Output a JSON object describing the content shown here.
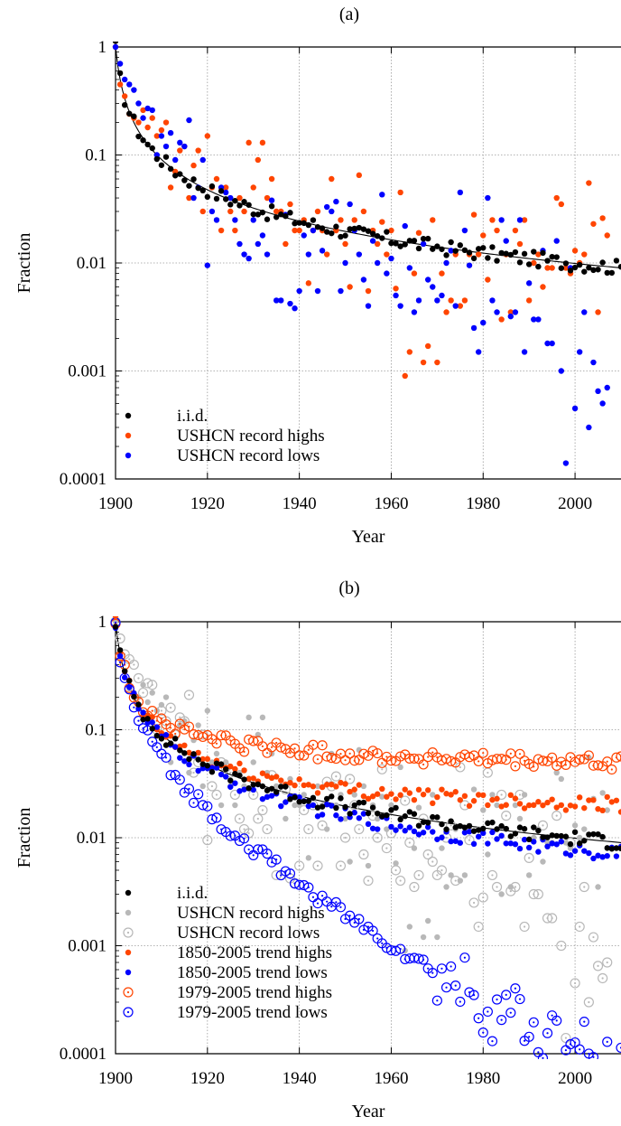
{
  "chart_data": [
    {
      "type": "scatter",
      "title": "(a)",
      "xlabel": "Year",
      "ylabel": "Fraction",
      "yscale": "log",
      "xlim": [
        1900,
        2010
      ],
      "ylim": [
        0.0001,
        1
      ],
      "grid": true,
      "legend_position": "bottom-left",
      "x_ticks": [
        "1900",
        "1920",
        "1940",
        "1960",
        "1980",
        "2000"
      ],
      "y_ticks": [
        "0.0001",
        "0.001",
        "0.01",
        "0.1",
        "1"
      ],
      "iid_curve": "1/(year-1899)",
      "series": [
        {
          "name": "i.i.d.",
          "color": "#000000",
          "marker": "filled",
          "model": "1/(year-1899)"
        },
        {
          "name": "USHCN record highs",
          "color": "#ff4500",
          "marker": "filled",
          "points": [
            [
              1900,
              1.0
            ],
            [
              1901,
              0.45
            ],
            [
              1902,
              0.35
            ],
            [
              1903,
              0.24
            ],
            [
              1904,
              0.22
            ],
            [
              1905,
              0.2
            ],
            [
              1906,
              0.26
            ],
            [
              1907,
              0.18
            ],
            [
              1908,
              0.22
            ],
            [
              1909,
              0.15
            ],
            [
              1910,
              0.17
            ],
            [
              1911,
              0.2
            ],
            [
              1912,
              0.05
            ],
            [
              1913,
              0.07
            ],
            [
              1914,
              0.11
            ],
            [
              1915,
              0.12
            ],
            [
              1916,
              0.04
            ],
            [
              1917,
              0.08
            ],
            [
              1918,
              0.11
            ],
            [
              1919,
              0.03
            ],
            [
              1920,
              0.15
            ],
            [
              1921,
              0.05
            ],
            [
              1922,
              0.06
            ],
            [
              1923,
              0.02
            ],
            [
              1924,
              0.05
            ],
            [
              1925,
              0.03
            ],
            [
              1926,
              0.02
            ],
            [
              1927,
              0.04
            ],
            [
              1928,
              0.03
            ],
            [
              1929,
              0.13
            ],
            [
              1930,
              0.05
            ],
            [
              1931,
              0.09
            ],
            [
              1932,
              0.13
            ],
            [
              1933,
              0.04
            ],
            [
              1934,
              0.06
            ],
            [
              1935,
              0.03
            ],
            [
              1936,
              0.03
            ],
            [
              1937,
              0.015
            ],
            [
              1938,
              0.035
            ],
            [
              1939,
              0.02
            ],
            [
              1940,
              0.02
            ],
            [
              1941,
              0.025
            ],
            [
              1942,
              0.0065
            ],
            [
              1943,
              0.02
            ],
            [
              1944,
              0.03
            ],
            [
              1945,
              0.02
            ],
            [
              1946,
              0.012
            ],
            [
              1947,
              0.06
            ],
            [
              1948,
              0.02
            ],
            [
              1949,
              0.025
            ],
            [
              1950,
              0.015
            ],
            [
              1951,
              0.006
            ],
            [
              1952,
              0.025
            ],
            [
              1953,
              0.065
            ],
            [
              1954,
              0.03
            ],
            [
              1955,
              0.0055
            ],
            [
              1956,
              0.02
            ],
            [
              1957,
              0.015
            ],
            [
              1958,
              0.024
            ],
            [
              1959,
              0.012
            ],
            [
              1960,
              0.02
            ],
            [
              1961,
              0.0058
            ],
            [
              1962,
              0.045
            ],
            [
              1963,
              0.0009
            ],
            [
              1964,
              0.0015
            ],
            [
              1965,
              0.008
            ],
            [
              1966,
              0.019
            ],
            [
              1967,
              0.0012
            ],
            [
              1968,
              0.0017
            ],
            [
              1969,
              0.025
            ],
            [
              1970,
              0.0012
            ],
            [
              1971,
              0.008
            ],
            [
              1972,
              0.0035
            ],
            [
              1973,
              0.0045
            ],
            [
              1974,
              0.012
            ],
            [
              1975,
              0.004
            ],
            [
              1976,
              0.0045
            ],
            [
              1977,
              0.012
            ],
            [
              1978,
              0.028
            ],
            [
              1979,
              0.012
            ],
            [
              1980,
              0.018
            ],
            [
              1981,
              0.007
            ],
            [
              1982,
              0.025
            ],
            [
              1983,
              0.02
            ],
            [
              1984,
              0.003
            ],
            [
              1985,
              0.012
            ],
            [
              1986,
              0.0035
            ],
            [
              1987,
              0.02
            ],
            [
              1988,
              0.015
            ],
            [
              1989,
              0.025
            ],
            [
              1990,
              0.0045
            ],
            [
              1991,
              0.01
            ],
            [
              1992,
              0.012
            ],
            [
              1993,
              0.006
            ],
            [
              1994,
              0.009
            ],
            [
              1995,
              0.009
            ],
            [
              1996,
              0.04
            ],
            [
              1997,
              0.035
            ],
            [
              1998,
              0.009
            ],
            [
              1999,
              0.008
            ],
            [
              2000,
              0.013
            ],
            [
              2001,
              0.01
            ],
            [
              2002,
              0.012
            ],
            [
              2003,
              0.055
            ],
            [
              2004,
              0.023
            ],
            [
              2005,
              0.0035
            ],
            [
              2006,
              0.026
            ],
            [
              2007,
              0.018
            ]
          ]
        },
        {
          "name": "USHCN record lows",
          "color": "#0000ff",
          "marker": "filled",
          "points": [
            [
              1900,
              1.0
            ],
            [
              1901,
              0.7
            ],
            [
              1902,
              0.5
            ],
            [
              1903,
              0.45
            ],
            [
              1904,
              0.4
            ],
            [
              1905,
              0.3
            ],
            [
              1906,
              0.22
            ],
            [
              1907,
              0.27
            ],
            [
              1908,
              0.26
            ],
            [
              1909,
              0.1
            ],
            [
              1910,
              0.15
            ],
            [
              1911,
              0.12
            ],
            [
              1912,
              0.16
            ],
            [
              1913,
              0.09
            ],
            [
              1914,
              0.13
            ],
            [
              1915,
              0.12
            ],
            [
              1916,
              0.21
            ],
            [
              1917,
              0.04
            ],
            [
              1918,
              0.05
            ],
            [
              1919,
              0.09
            ],
            [
              1920,
              0.0095
            ],
            [
              1921,
              0.03
            ],
            [
              1922,
              0.025
            ],
            [
              1923,
              0.05
            ],
            [
              1924,
              0.045
            ],
            [
              1925,
              0.04
            ],
            [
              1926,
              0.025
            ],
            [
              1927,
              0.015
            ],
            [
              1928,
              0.012
            ],
            [
              1929,
              0.011
            ],
            [
              1930,
              0.025
            ],
            [
              1931,
              0.015
            ],
            [
              1932,
              0.018
            ],
            [
              1933,
              0.012
            ],
            [
              1934,
              0.038
            ],
            [
              1935,
              0.0045
            ],
            [
              1936,
              0.0045
            ],
            [
              1937,
              0.028
            ],
            [
              1938,
              0.0042
            ],
            [
              1939,
              0.0038
            ],
            [
              1940,
              0.0055
            ],
            [
              1941,
              0.018
            ],
            [
              1942,
              0.012
            ],
            [
              1943,
              0.02
            ],
            [
              1944,
              0.0055
            ],
            [
              1945,
              0.013
            ],
            [
              1946,
              0.033
            ],
            [
              1947,
              0.03
            ],
            [
              1948,
              0.037
            ],
            [
              1949,
              0.0055
            ],
            [
              1950,
              0.01
            ],
            [
              1951,
              0.035
            ],
            [
              1952,
              0.02
            ],
            [
              1953,
              0.012
            ],
            [
              1954,
              0.007
            ],
            [
              1955,
              0.004
            ],
            [
              1956,
              0.016
            ],
            [
              1957,
              0.01
            ],
            [
              1958,
              0.043
            ],
            [
              1959,
              0.008
            ],
            [
              1960,
              0.011
            ],
            [
              1961,
              0.005
            ],
            [
              1962,
              0.004
            ],
            [
              1963,
              0.022
            ],
            [
              1964,
              0.009
            ],
            [
              1965,
              0.0035
            ],
            [
              1966,
              0.0045
            ],
            [
              1967,
              0.015
            ],
            [
              1968,
              0.007
            ],
            [
              1969,
              0.006
            ],
            [
              1970,
              0.0045
            ],
            [
              1971,
              0.005
            ],
            [
              1972,
              0.01
            ],
            [
              1973,
              0.013
            ],
            [
              1974,
              0.004
            ],
            [
              1975,
              0.045
            ],
            [
              1976,
              0.02
            ],
            [
              1977,
              0.0095
            ],
            [
              1978,
              0.0025
            ],
            [
              1979,
              0.0015
            ],
            [
              1980,
              0.0028
            ],
            [
              1981,
              0.04
            ],
            [
              1982,
              0.0045
            ],
            [
              1983,
              0.0035
            ],
            [
              1984,
              0.025
            ],
            [
              1985,
              0.016
            ],
            [
              1986,
              0.0032
            ],
            [
              1987,
              0.0035
            ],
            [
              1988,
              0.025
            ],
            [
              1989,
              0.0015
            ],
            [
              1990,
              0.0065
            ],
            [
              1991,
              0.003
            ],
            [
              1992,
              0.003
            ],
            [
              1993,
              0.013
            ],
            [
              1994,
              0.0018
            ],
            [
              1995,
              0.0018
            ],
            [
              1996,
              0.016
            ],
            [
              1997,
              0.001
            ],
            [
              1998,
              0.00014
            ],
            [
              1999,
              0.009
            ],
            [
              2000,
              0.00045
            ],
            [
              2001,
              0.0015
            ],
            [
              2002,
              0.0035
            ],
            [
              2003,
              0.0003
            ],
            [
              2004,
              0.0012
            ],
            [
              2005,
              0.00065
            ],
            [
              2006,
              0.0005
            ],
            [
              2007,
              0.0007
            ]
          ]
        }
      ]
    },
    {
      "type": "scatter",
      "title": "(b)",
      "xlabel": "Year",
      "ylabel": "Fraction",
      "yscale": "log",
      "xlim": [
        1900,
        2010
      ],
      "ylim": [
        0.0001,
        1
      ],
      "grid": true,
      "legend_position": "bottom-left",
      "x_ticks": [
        "1900",
        "1920",
        "1940",
        "1960",
        "1980",
        "2000"
      ],
      "y_ticks": [
        "0.0001",
        "0.001",
        "0.01",
        "0.1",
        "1"
      ],
      "iid_curve": "1/(year-1899)",
      "series": [
        {
          "name": "i.i.d.",
          "color": "#000000",
          "marker": "filled",
          "model": "1/(year-1899)"
        },
        {
          "name": "USHCN record highs",
          "color": "#b8b8b8",
          "marker": "filled",
          "same_data_as": "panel a USHCN record highs"
        },
        {
          "name": "USHCN record lows",
          "color": "#b8b8b8",
          "marker": "open-dot",
          "same_data_as": "panel a USHCN record lows"
        },
        {
          "name": "1850-2005 trend highs",
          "color": "#ff4500",
          "marker": "filled",
          "model": "1/n + 0.012*(1-exp(-n/40))"
        },
        {
          "name": "1850-2005 trend lows",
          "color": "#0000ff",
          "marker": "filled",
          "model": "1/n * (0.78 + 0.22*exp(-n/30))"
        },
        {
          "name": "1979-2005 trend highs",
          "color": "#ff4500",
          "marker": "open-dot",
          "model": "1/n + 0.04*(1-exp(-n/8))"
        },
        {
          "name": "1979-2005 trend lows",
          "color": "#0000ff",
          "marker": "open-dot",
          "model": "1/n * exp(-n/22)"
        }
      ]
    }
  ]
}
